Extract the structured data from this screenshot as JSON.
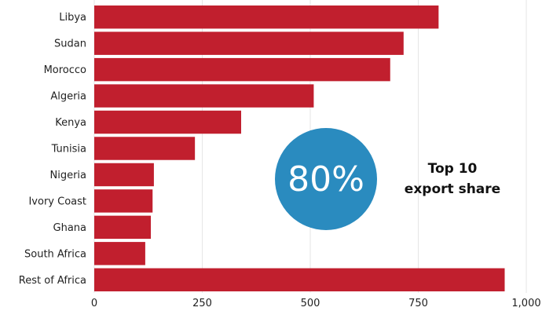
{
  "chart_data": {
    "type": "bar",
    "orientation": "horizontal",
    "title": "",
    "xlabel": "",
    "ylabel": "",
    "categories": [
      "Libya",
      "Sudan",
      "Morocco",
      "Algeria",
      "Kenya",
      "Tunisia",
      "Nigeria",
      "Ivory Coast",
      "Ghana",
      "South Africa",
      "Rest of Africa"
    ],
    "values": [
      797,
      716,
      685,
      508,
      340,
      233,
      138,
      135,
      131,
      118,
      950
    ],
    "xlim": [
      0,
      1000
    ],
    "xticks": [
      "0",
      "250",
      "500",
      "750",
      "1,000"
    ],
    "xtick_values": [
      0,
      250,
      500,
      750,
      1000
    ],
    "grid": true,
    "bar_color": "#c11f2e"
  },
  "callout": {
    "value": "80%",
    "line1": "Top 10",
    "line2": "export share",
    "circle_color": "#2a8bbf"
  }
}
